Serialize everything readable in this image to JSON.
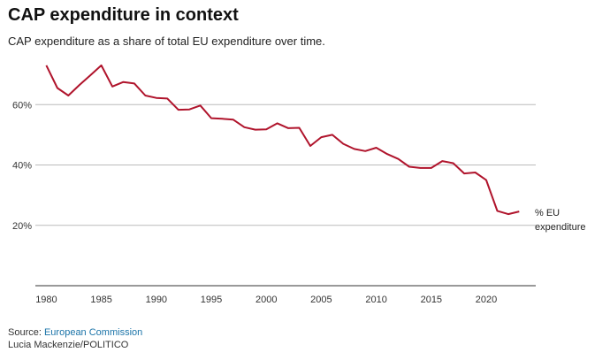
{
  "title": "CAP expenditure in context",
  "subtitle": "CAP expenditure as a share of total EU expenditure over time.",
  "source": {
    "prefix": "Source: ",
    "link_text": "European Commission",
    "credit": "Lucia Mackenzie/POLITICO"
  },
  "colors": {
    "line": "#b0142c",
    "grid": "#bbbbbb",
    "axis": "#333333",
    "link": "#1a73a8"
  },
  "chart_data": {
    "type": "line",
    "x": [
      1980,
      1981,
      1982,
      1983,
      1984,
      1985,
      1986,
      1987,
      1988,
      1989,
      1990,
      1991,
      1992,
      1993,
      1994,
      1995,
      1996,
      1997,
      1998,
      1999,
      2000,
      2001,
      2002,
      2003,
      2004,
      2005,
      2006,
      2007,
      2008,
      2009,
      2010,
      2011,
      2012,
      2013,
      2014,
      2015,
      2016,
      2017,
      2018,
      2019,
      2020,
      2021,
      2022,
      2023
    ],
    "series": [
      {
        "name": "% EU expenditure",
        "values": [
          73,
          65.5,
          63,
          66.5,
          69.7,
          73,
          66,
          67.5,
          67,
          63,
          62.2,
          62,
          58.3,
          58.4,
          59.7,
          55.5,
          55.3,
          55,
          52.5,
          51.7,
          51.8,
          53.8,
          52.2,
          52.3,
          46.3,
          49.2,
          50,
          47,
          45.3,
          44.6,
          45.7,
          43.6,
          42,
          39.4,
          39,
          39,
          41.3,
          40.6,
          37.2,
          37.5,
          35,
          24.8,
          23.7,
          24.6
        ]
      }
    ],
    "xlabel": "",
    "ylabel": "",
    "xlim": [
      1979,
      2024.5
    ],
    "ylim": [
      0,
      80
    ],
    "x_ticks": [
      1980,
      1985,
      1990,
      1995,
      2000,
      2005,
      2010,
      2015,
      2020
    ],
    "x_tick_labels": [
      "1980",
      "1985",
      "1990",
      "1995",
      "2000",
      "2005",
      "2010",
      "2015",
      "2020"
    ],
    "y_ticks": [
      20,
      40,
      60
    ],
    "y_tick_labels": [
      "20%",
      "40%",
      "60%"
    ],
    "grid": true,
    "series_label_lines": [
      "% EU",
      "expenditure"
    ],
    "legend": "direct label at line end"
  }
}
